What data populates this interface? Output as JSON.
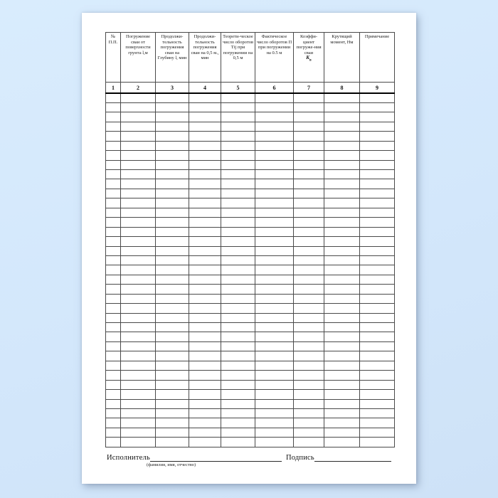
{
  "page": {
    "background_color": "#d3e7fb",
    "paper_color": "#ffffff",
    "border_color": "#4a4a4a"
  },
  "table": {
    "columns": [
      {
        "number": "1",
        "label": "№ П.П."
      },
      {
        "number": "2",
        "label": "Погружение сваи от поверхности грунта l,м"
      },
      {
        "number": "3",
        "label": "Продолжи-тельность погружения сваи на Глубину l, мин"
      },
      {
        "number": "4",
        "label": "Продолжи-тельность погружения сваи на 0,5 м., мин"
      },
      {
        "number": "5",
        "label": "Теорети-ческое число оборотов Тij при погружении на 0,5 м"
      },
      {
        "number": "6",
        "label": "Фактическое число оборотов П при погружении на 0.5 м"
      },
      {
        "number": "7",
        "label": "Коэффи-циент погруже-ния сваи",
        "symbol_base": "К",
        "symbol_sub": "в"
      },
      {
        "number": "8",
        "label": "Крутящий момент, Нм"
      },
      {
        "number": "9",
        "label": "Примечание"
      }
    ],
    "body_row_count": 37
  },
  "footer": {
    "executor_label": "Исполнитель",
    "executor_hint": "(фамилия, имя, отчество)",
    "signature_label": "Подпись"
  }
}
